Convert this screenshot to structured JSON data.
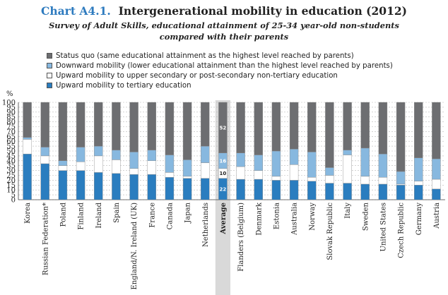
{
  "header": {
    "chart_label": "Chart A4.1.",
    "chart_title": "Intergenerational mobility in education (2012)",
    "subtitle_line1": "Survey of Adult Skills, educational attainment of 25-34 year-old non-students",
    "subtitle_line2": "compared with their parents"
  },
  "chart_data": {
    "type": "bar",
    "stacked": true,
    "title": "Chart A4.1. Intergenerational mobility in education (2012)",
    "subtitle": "Survey of Adult Skills, educational attainment of 25-34 year-old non-students compared with their parents",
    "ylabel": "%",
    "ylim": [
      0,
      100
    ],
    "yticks": [
      0,
      5,
      10,
      15,
      20,
      25,
      30,
      35,
      40,
      45,
      50,
      55,
      60,
      65,
      70,
      75,
      80,
      85,
      90,
      95,
      100
    ],
    "grid": true,
    "legend_position": "top-left",
    "categories": [
      "Korea",
      "Russian Federation*",
      "Poland",
      "Finland",
      "Ireland",
      "Spain",
      "England/N. Ireland (UK)",
      "France",
      "Canada",
      "Japan",
      "Netherlands",
      "Average",
      "Flanders (Belgium)",
      "Denmark",
      "Estonia",
      "Australia",
      "Norway",
      "Slovak Republic",
      "Italy",
      "Sweden",
      "United States",
      "Czech Republic",
      "Germany",
      "Austria"
    ],
    "highlight_category": "Average",
    "series": [
      {
        "name": "Upward mobility to tertiary education",
        "color": "#2a7dbf",
        "values": [
          47,
          37,
          30,
          30,
          28,
          27,
          26,
          26,
          23,
          22,
          22,
          22,
          21,
          21,
          20,
          20,
          19,
          17,
          17,
          16,
          16,
          15,
          15,
          11
        ]
      },
      {
        "name": "Upward mobility to upper secondary or post-secondary non-tertiary education",
        "color": "#ffffff",
        "values": [
          15,
          8,
          5,
          9,
          17,
          14,
          6,
          14,
          5,
          2,
          16,
          10,
          13,
          9,
          4,
          16,
          4,
          8,
          29,
          8,
          7,
          1,
          4,
          10
        ]
      },
      {
        "name": "Downward mobility (lower educational attainment than the highest level reached by parents)",
        "color": "#87b8df",
        "values": [
          2,
          9,
          5,
          15,
          10,
          10,
          17,
          11,
          18,
          17,
          17,
          16,
          14,
          16,
          26,
          16,
          26,
          8,
          5,
          29,
          24,
          13,
          24,
          21
        ]
      },
      {
        "name": "Status quo (same educational attainment as the highest level reached by parents)",
        "color": "#6d6e71",
        "values": [
          36,
          46,
          60,
          46,
          45,
          49,
          51,
          49,
          54,
          59,
          45,
          52,
          52,
          54,
          50,
          48,
          51,
          67,
          49,
          47,
          53,
          71,
          57,
          58
        ]
      }
    ],
    "average_labels": [
      22,
      10,
      16,
      52
    ]
  }
}
